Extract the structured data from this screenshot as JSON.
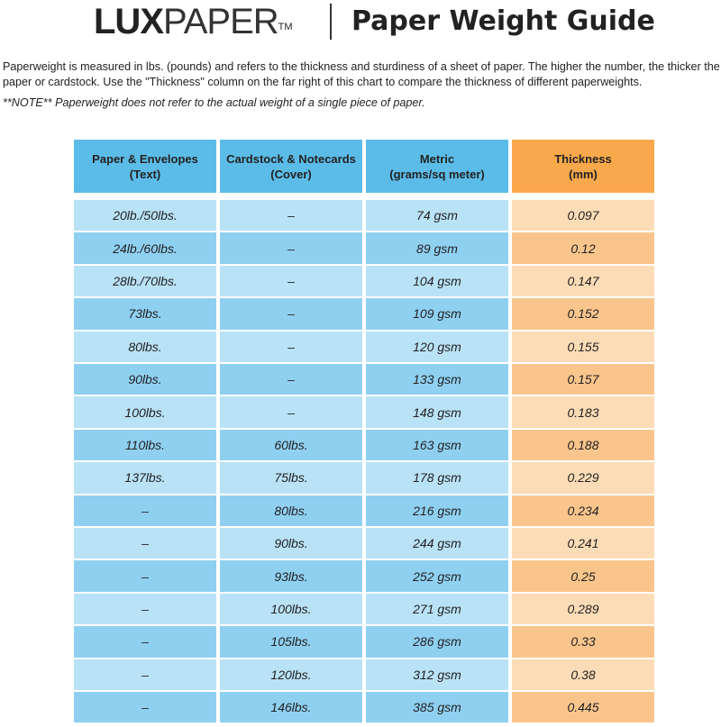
{
  "header": {
    "logo": {
      "lux": "LUX",
      "paper": "PAPER",
      "tm": "TM"
    },
    "title": "Paper Weight Guide"
  },
  "intro": "Paperweight is measured in lbs. (pounds) and refers to the thickness and sturdiness of a sheet of paper. The higher the number, the thicker the paper or cardstock. Use the \"Thickness\" column on the far right of this chart to compare the thickness of different paperweights.",
  "note": "**NOTE** Paperweight does not refer to the actual weight of a single piece of paper.",
  "table": {
    "columns": [
      [
        "Paper & Envelopes",
        "(Text)"
      ],
      [
        "Cardstock & Notecards",
        "(Cover)"
      ],
      [
        "Metric",
        "(grams/sq meter)"
      ],
      [
        "Thickness",
        "(mm)"
      ]
    ],
    "rows": [
      [
        "20lb./50lbs.",
        "–",
        "74 gsm",
        "0.097"
      ],
      [
        "24lb./60lbs.",
        "–",
        "89 gsm",
        "0.12"
      ],
      [
        "28lb./70lbs.",
        "–",
        "104 gsm",
        "0.147"
      ],
      [
        "73lbs.",
        "–",
        "109 gsm",
        "0.152"
      ],
      [
        "80lbs.",
        "–",
        "120 gsm",
        "0.155"
      ],
      [
        "90lbs.",
        "–",
        "133 gsm",
        "0.157"
      ],
      [
        "100lbs.",
        "–",
        "148 gsm",
        "0.183"
      ],
      [
        "110lbs.",
        "60lbs.",
        "163 gsm",
        "0.188"
      ],
      [
        "137lbs.",
        "75lbs.",
        "178 gsm",
        "0.229"
      ],
      [
        "–",
        "80lbs.",
        "216 gsm",
        "0.234"
      ],
      [
        "–",
        "90lbs.",
        "244 gsm",
        "0.241"
      ],
      [
        "–",
        "93lbs.",
        "252 gsm",
        "0.25"
      ],
      [
        "–",
        "100lbs.",
        "271 gsm",
        "0.289"
      ],
      [
        "–",
        "105lbs.",
        "286 gsm",
        "0.33"
      ],
      [
        "–",
        "120lbs.",
        "312 gsm",
        "0.38"
      ],
      [
        "–",
        "146lbs.",
        "385 gsm",
        "0.445"
      ]
    ]
  }
}
